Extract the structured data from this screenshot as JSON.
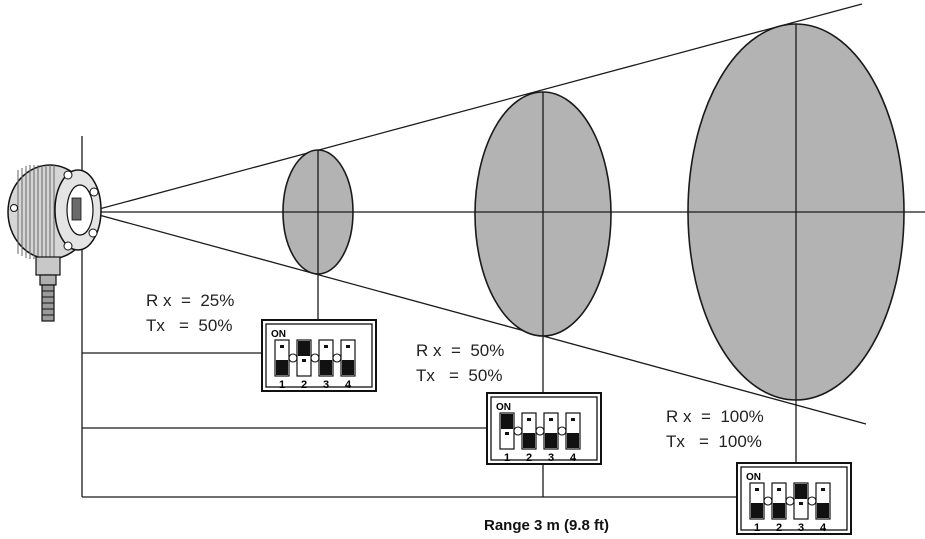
{
  "labels": {
    "set1_rx": "R x  =  25%",
    "set1_tx": "Tx   =  50%",
    "set2_rx": "R x  =  50%",
    "set2_tx": "Tx   =  50%",
    "set3_rx": "R x  =  100%",
    "set3_tx": "Tx   =  100%",
    "range": "Range 3 m (9.8 ft)"
  },
  "dip_switches": [
    {
      "on_label": "ON",
      "numbers": [
        "1",
        "2",
        "3",
        "4"
      ],
      "states": [
        "off",
        "on",
        "off",
        "off"
      ]
    },
    {
      "on_label": "ON",
      "numbers": [
        "1",
        "2",
        "3",
        "4"
      ],
      "states": [
        "on",
        "off",
        "off",
        "off"
      ]
    },
    {
      "on_label": "ON",
      "numbers": [
        "1",
        "2",
        "3",
        "4"
      ],
      "states": [
        "off",
        "off",
        "on",
        "off"
      ]
    }
  ],
  "colors": {
    "ellipse_fill": "#b3b3b3",
    "line": "#1a1a1a"
  }
}
